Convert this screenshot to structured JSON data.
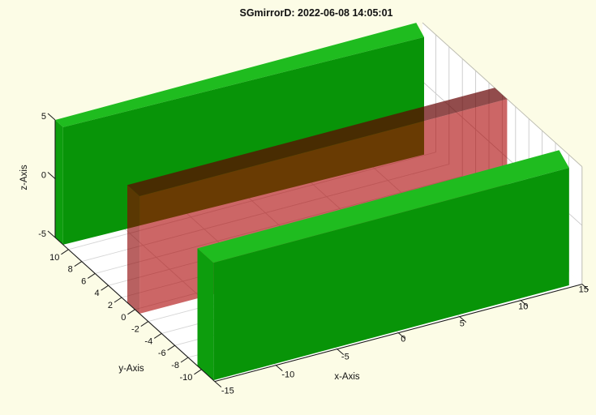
{
  "title": "SGmirrorD: 2022-06-08 14:05:01",
  "chart_data": {
    "type": "3d-scene",
    "title": "SGmirrorD: 2022-06-08 14:05:01",
    "axes": {
      "x": {
        "label": "x-Axis",
        "lim": [
          -15,
          15
        ],
        "ticks": [
          -15,
          -10,
          -5,
          0,
          5,
          10,
          15
        ]
      },
      "y": {
        "label": "y-Axis",
        "lim": [
          -12,
          12
        ],
        "ticks": [
          10,
          8,
          6,
          4,
          2,
          0,
          -2,
          -4,
          -6,
          -8,
          -10
        ]
      },
      "z": {
        "label": "z-Axis",
        "lim": [
          -5,
          5
        ],
        "ticks": [
          5,
          0,
          -5
        ]
      }
    },
    "grid": {
      "floor_y_lines": [
        10,
        8,
        6,
        4,
        2,
        0,
        -2,
        -4,
        -6,
        -8,
        -10
      ],
      "floor_x_lines": [
        -10,
        -5,
        0,
        5,
        10
      ],
      "wall_y_lines": [
        10,
        8,
        6,
        4,
        2,
        0,
        -2,
        -4,
        -6,
        -8,
        -10
      ],
      "wall_z_lines": [
        0
      ]
    },
    "objects": [
      {
        "name": "green-slab-back",
        "kind": "opaque-box",
        "footprint": [
          [
            -15,
            12.0
          ],
          [
            14.6,
            12.2
          ],
          [
            14.1,
            10.1
          ],
          [
            -15,
            10.8
          ]
        ],
        "z_range": [
          -5,
          5
        ],
        "faces": {
          "top": {
            "color": "#1FBC1F",
            "opacity": 1
          },
          "side": {
            "color": "#0D9D0D",
            "opacity": 1
          },
          "front": {
            "color": "#089408",
            "opacity": 1
          }
        }
      },
      {
        "name": "red-transparent-plane",
        "kind": "transparent-box",
        "footprint": [
          [
            -15,
            1.15
          ],
          [
            15,
            1.15
          ],
          [
            15,
            -0.73
          ],
          [
            -15,
            -0.7
          ]
        ],
        "z_range": [
          -5,
          5
        ],
        "faces": {
          "top": {
            "color": "rgb(100,0,0)",
            "opacity": 0.7
          },
          "side": {
            "color": "rgb(140,0,0)",
            "opacity": 0.62
          },
          "front": {
            "color": "rgb(170,0,0)",
            "opacity": 0.6
          }
        }
      },
      {
        "name": "green-slab-front",
        "kind": "opaque-box",
        "footprint": [
          [
            -15,
            -9.4
          ],
          [
            14.7,
            -9.1
          ],
          [
            14.1,
            -11.7
          ],
          [
            -15,
            -11.8
          ]
        ],
        "z_range": [
          -5,
          5
        ],
        "faces": {
          "top": {
            "color": "#1FBC1F",
            "opacity": 1
          },
          "side": {
            "color": "#0D9D0D",
            "opacity": 1
          },
          "front": {
            "color": "#089408",
            "opacity": 1
          }
        }
      }
    ]
  },
  "colors": {
    "background": "#FCFCE6",
    "surface": "#FFFFFF",
    "wall_grid": "#C9C9C9",
    "floor_grid": "#D6D6D6",
    "wall_edge": "#BDBDB2",
    "axis": "#1A1A1A",
    "text": "#111111"
  }
}
